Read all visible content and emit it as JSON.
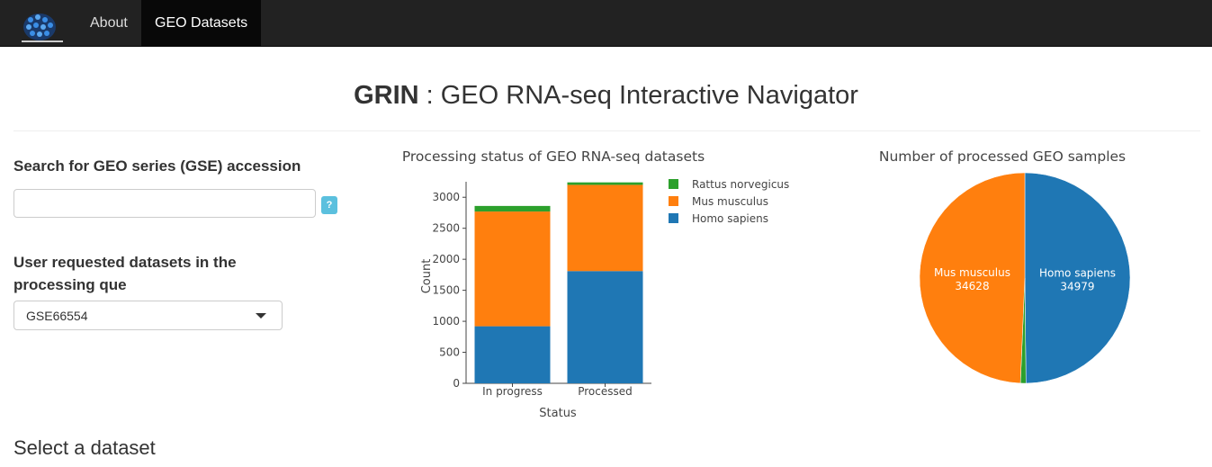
{
  "nav": {
    "items": [
      {
        "label": "About",
        "active": false
      },
      {
        "label": "GEO Datasets",
        "active": true
      }
    ]
  },
  "header": {
    "title_bold": "GRIN",
    "title_rest": " : GEO RNA-seq Interactive Navigator"
  },
  "sidebar": {
    "search_label": "Search for GEO series (GSE) accession",
    "search_value": "",
    "help_glyph": "?",
    "requested_label_line1": "User requested datasets in the",
    "requested_label_line2": "processing que",
    "requested_selected": "GSE66554"
  },
  "section": {
    "heading": "Select a dataset"
  },
  "colors": {
    "homo": "#1f77b4",
    "mus": "#ff7f0e",
    "rattus": "#2ca02c",
    "navbar": "#222222",
    "help": "#5bc0de"
  },
  "chart_data": [
    {
      "type": "bar",
      "stacked": true,
      "title": "Processing status of GEO RNA-seq datasets",
      "xlabel": "Status",
      "ylabel": "Count",
      "categories": [
        "In progress",
        "Processed"
      ],
      "ylim": [
        0,
        3250
      ],
      "yticks": [
        0,
        500,
        1000,
        1500,
        2000,
        2500,
        3000
      ],
      "legend_position": "right",
      "series": [
        {
          "name": "Homo sapiens",
          "color": "#1f77b4",
          "values": [
            920,
            1810
          ]
        },
        {
          "name": "Mus musculus",
          "color": "#ff7f0e",
          "values": [
            1850,
            1390
          ]
        },
        {
          "name": "Rattus norvegicus",
          "color": "#2ca02c",
          "values": [
            90,
            40
          ]
        }
      ],
      "legend": [
        "Rattus norvegicus",
        "Mus musculus",
        "Homo sapiens"
      ]
    },
    {
      "type": "pie",
      "title": "Number of processed GEO samples",
      "slices": [
        {
          "label": "Homo sapiens",
          "value": 34979,
          "color": "#1f77b4",
          "show_label": true
        },
        {
          "label": "Mus musculus",
          "value": 34628,
          "color": "#ff7f0e",
          "show_label": true
        },
        {
          "label": "Rattus norvegicus",
          "value": 596,
          "color": "#2ca02c",
          "show_label": false
        }
      ]
    }
  ]
}
